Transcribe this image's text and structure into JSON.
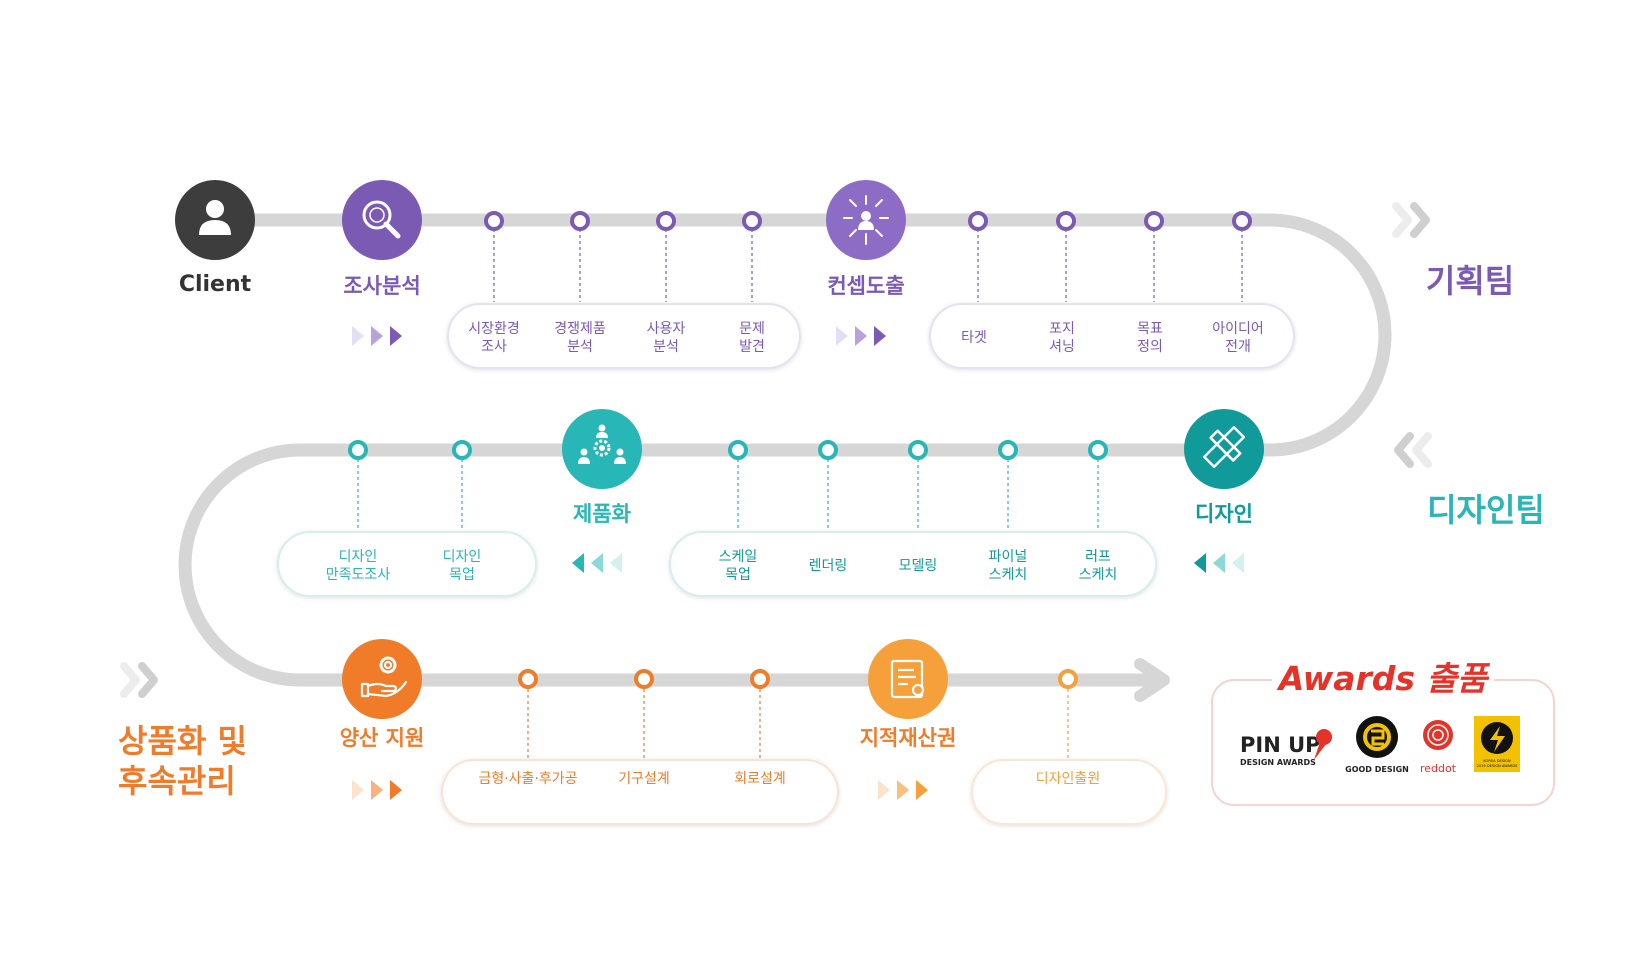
{
  "colors": {
    "track": "#d6d6d6",
    "client": "#3d3d3d",
    "planning": "#7b5ab4",
    "design": "#28b6b6",
    "design_dark": "#109a9a",
    "commercial": "#f07c2a",
    "commercial_light": "#f5a03a",
    "awards_red": "#e5332a",
    "chevron_grey": "#d4d4d4"
  },
  "client": {
    "label": "Client",
    "icon": "person-icon"
  },
  "teams": {
    "planning": "기획팀",
    "design": "디자인팀",
    "commercial_line1": "상품화 및",
    "commercial_line2": "후속관리"
  },
  "row1": {
    "step1": {
      "label": "조사분석",
      "icon": "magnifier-icon"
    },
    "box1": [
      {
        "line1": "시장환경",
        "line2": "조사"
      },
      {
        "line1": "경쟁제품",
        "line2": "분석"
      },
      {
        "line1": "사용자",
        "line2": "분석"
      },
      {
        "line1": "문제",
        "line2": "발견"
      }
    ],
    "step2": {
      "label": "컨셉도출",
      "icon": "concept-network-icon"
    },
    "box2": [
      {
        "line1": "타겟",
        "line2": ""
      },
      {
        "line1": "포지",
        "line2": "셔닝"
      },
      {
        "line1": "목표",
        "line2": "정의"
      },
      {
        "line1": "아이디어",
        "line2": "전개"
      }
    ]
  },
  "row2": {
    "step1": {
      "label": "디자인",
      "icon": "pencil-ruler-icon"
    },
    "box1": [
      {
        "line1": "스케일",
        "line2": "목업"
      },
      {
        "line1": "렌더링",
        "line2": ""
      },
      {
        "line1": "모델링",
        "line2": ""
      },
      {
        "line1": "파이널",
        "line2": "스케치"
      },
      {
        "line1": "러프",
        "line2": "스케치"
      }
    ],
    "step2": {
      "label": "제품화",
      "icon": "team-gear-icon"
    },
    "box2": [
      {
        "line1": "디자인",
        "line2": "만족도조사"
      },
      {
        "line1": "디자인",
        "line2": "목업"
      }
    ]
  },
  "row3": {
    "step1": {
      "label": "양산 지원",
      "icon": "hand-gear-icon"
    },
    "box1": [
      "금형·사출·후가공",
      "기구설계",
      "회로설계"
    ],
    "step2": {
      "label": "지적재산권",
      "icon": "certificate-icon"
    },
    "box2": [
      "디자인출원"
    ]
  },
  "awards": {
    "title": "Awards 출품",
    "pinup_main": "PIN UP",
    "pinup_sub": "DESIGN AWARDS",
    "gd_label": "GOOD DESIGN",
    "reddot_label": "reddot",
    "korea_line1": "KOREA DESIGN",
    "korea_line2": "2019 DESIGN AWARDS"
  }
}
